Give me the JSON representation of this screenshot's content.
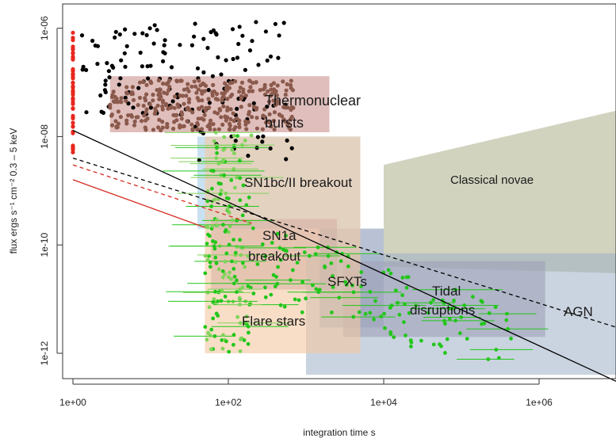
{
  "chart_data": {
    "type": "scatter",
    "title": "",
    "xlabel": "integration time s",
    "ylabel": "flux  ergs s⁻¹ cm⁻²  0.3 – 5 keV",
    "x_scale": "log",
    "y_scale": "log",
    "xlim": [
      0.6,
      10000000
    ],
    "ylim": [
      4e-13,
      2e-06
    ],
    "x_ticks": [
      "1e+00",
      "1e+02",
      "1e+04",
      "1e+06"
    ],
    "y_ticks": [
      "1e-06",
      "1e-08",
      "1e-10",
      "1e-12"
    ],
    "grid": false,
    "legend": "none",
    "colors": {
      "black_points": "#000000",
      "red_points": "#e8281e",
      "brown_points": "#8b5a4c",
      "green_points": "#22c61a",
      "light_green_points": "#7fd35a",
      "solid_line": "#000000",
      "red_line": "#d52a20"
    },
    "regions": [
      {
        "name": "Thermonuclear bursts",
        "label_lines": [
          "Thermonuclear",
          "bursts"
        ],
        "color": "#c9928e",
        "alpha": 0.6,
        "x_range": [
          3,
          2000
        ],
        "y_range": [
          1.2e-08,
          1.3e-07
        ]
      },
      {
        "name": "SN1bc/II breakout",
        "label_lines": [
          "SN1bc/II breakout"
        ],
        "color": "#9ec9e6",
        "alpha": 0.55,
        "x_range": [
          40,
          5000
        ],
        "y_range": [
          2e-10,
          1e-08
        ]
      },
      {
        "name": "Classical novae",
        "label_lines": [
          "Classical novae"
        ],
        "color": "#b8bc9c",
        "alpha": 0.65,
        "x_range": [
          10000,
          10000000
        ],
        "y_range": [
          4e-11,
          3e-08
        ]
      },
      {
        "name": "SN1a breakout",
        "label_lines": [
          "SN1a",
          "breakout"
        ],
        "color": "#a47e9c",
        "alpha": 0.5,
        "x_range": [
          60,
          2500
        ],
        "y_range": [
          1.5e-11,
          3e-10
        ]
      },
      {
        "name": "SFXTs",
        "label_lines": [
          "SFXTs"
        ],
        "color": "#7d8fb0",
        "alpha": 0.55,
        "x_range": [
          1500,
          10000
        ],
        "y_range": [
          3e-12,
          2e-10
        ]
      },
      {
        "name": "Tidal disruptions",
        "label_lines": [
          "Tidal",
          "disruptions"
        ],
        "color": "#a08da5",
        "alpha": 0.6,
        "x_range": [
          3000,
          1200000
        ],
        "y_range": [
          2e-12,
          5e-11
        ]
      },
      {
        "name": "AGN",
        "label_lines": [
          "AGN"
        ],
        "color": "#9fb1c6",
        "alpha": 0.55,
        "x_range": [
          1000,
          10000000
        ],
        "y_range": [
          4e-13,
          7e-11
        ]
      },
      {
        "name": "Flare stars",
        "label_lines": [
          "Flare stars"
        ],
        "color": "#f4c8a0",
        "alpha": 0.6,
        "x_range": [
          50,
          5000
        ],
        "y_range": [
          1e-12,
          1e-08
        ]
      }
    ],
    "lines": [
      {
        "style": "solid",
        "color": "#000000",
        "x": [
          1,
          10000000
        ],
        "y": [
          1.3e-08,
          3e-13
        ]
      },
      {
        "style": "dashed",
        "color": "#000000",
        "x": [
          1,
          10000000
        ],
        "y": [
          4e-09,
          3e-12
        ]
      },
      {
        "style": "solid",
        "color": "#d52a20",
        "x": [
          1,
          50
        ],
        "y": [
          1.6e-09,
          2.1e-10
        ]
      },
      {
        "style": "dashed",
        "color": "#d52a20",
        "x": [
          1,
          200
        ],
        "y": [
          3e-09,
          2.5e-10
        ]
      }
    ],
    "series": [
      {
        "group": "black",
        "color": "#000000",
        "x_range": [
          1.3,
          700
        ],
        "y_range": [
          3.5e-09,
          1.3e-06
        ],
        "count": 150
      },
      {
        "group": "red",
        "color": "#e8281e",
        "x": [
          1,
          1
        ],
        "y_range": [
          5e-09,
          8.5e-07
        ],
        "count": 55
      },
      {
        "group": "brown",
        "color": "#8b5a4c",
        "x_range": [
          3,
          700
        ],
        "y_range": [
          1.3e-08,
          1.1e-07
        ],
        "count": 330
      },
      {
        "group": "green",
        "color": "#22c61a",
        "x_range": [
          40,
          500000
        ],
        "y_range": [
          5e-13,
          8e-07
        ],
        "count": 300
      }
    ]
  }
}
